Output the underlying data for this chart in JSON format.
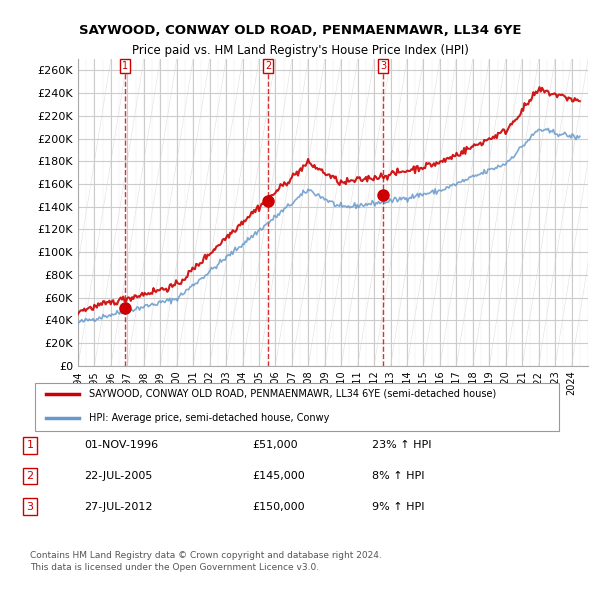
{
  "title": "SAYWOOD, CONWAY OLD ROAD, PENMAENMAWR, LL34 6YE",
  "subtitle": "Price paid vs. HM Land Registry's House Price Index (HPI)",
  "ylabel_ticks": [
    "£0",
    "£20K",
    "£40K",
    "£60K",
    "£80K",
    "£100K",
    "£120K",
    "£140K",
    "£160K",
    "£180K",
    "£200K",
    "£220K",
    "£240K",
    "£260K"
  ],
  "ytick_values": [
    0,
    20000,
    40000,
    60000,
    80000,
    100000,
    120000,
    140000,
    160000,
    180000,
    200000,
    220000,
    240000,
    260000
  ],
  "ylim": [
    0,
    270000
  ],
  "xlim_start": 1994.0,
  "xlim_end": 2025.0,
  "xtick_years": [
    1994,
    1995,
    1996,
    1997,
    1998,
    1999,
    2000,
    2001,
    2002,
    2003,
    2004,
    2005,
    2006,
    2007,
    2008,
    2009,
    2010,
    2011,
    2012,
    2013,
    2014,
    2015,
    2016,
    2017,
    2018,
    2019,
    2020,
    2021,
    2022,
    2023,
    2024
  ],
  "sale_dates": [
    1996.833,
    2005.55,
    2012.56
  ],
  "sale_prices": [
    51000,
    145000,
    150000
  ],
  "sale_labels": [
    "1",
    "2",
    "3"
  ],
  "hpi_line_color": "#6699cc",
  "price_line_color": "#cc0000",
  "sale_marker_color": "#cc0000",
  "vline_color": "#cc0000",
  "grid_color": "#cccccc",
  "background_color": "#ffffff",
  "legend_label_red": "SAYWOOD, CONWAY OLD ROAD, PENMAENMAWR, LL34 6YE (semi-detached house)",
  "legend_label_blue": "HPI: Average price, semi-detached house, Conwy",
  "table_rows": [
    [
      "1",
      "01-NOV-1996",
      "£51,000",
      "23% ↑ HPI"
    ],
    [
      "2",
      "22-JUL-2005",
      "£145,000",
      "8% ↑ HPI"
    ],
    [
      "3",
      "27-JUL-2012",
      "£150,000",
      "9% ↑ HPI"
    ]
  ],
  "footer_text": "Contains HM Land Registry data © Crown copyright and database right 2024.\nThis data is licensed under the Open Government Licence v3.0.",
  "hpi_base_price_1994": 38000,
  "hpi_base_price_2024": 210000,
  "price_paid_base_1994": 48000,
  "price_paid_base_2024": 215000
}
